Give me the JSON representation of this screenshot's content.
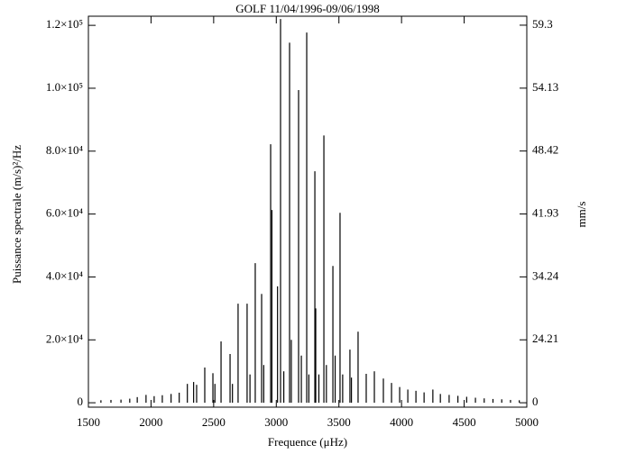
{
  "chart_data": {
    "type": "spectrum",
    "title": "GOLF 11/04/1996-09/06/1998",
    "xlabel": "Frequence (μHz)",
    "ylabel": "Puissance spectrale (m/s)²/Hz",
    "y2label": "mm/s",
    "xlim": [
      1500,
      5000
    ],
    "xticks": [
      1500,
      2000,
      2500,
      3000,
      3500,
      4000,
      4500,
      5000
    ],
    "ylim": [
      -1400,
      122900
    ],
    "yticks": [
      0,
      {
        "value": 20000,
        "label": "2.0×10⁴"
      },
      {
        "value": 40000,
        "label": "4.0×10⁴"
      },
      {
        "value": 60000,
        "label": "6.0×10⁴"
      },
      {
        "value": 80000,
        "label": "8.0×10⁴"
      },
      {
        "value": 100000,
        "label": "1.0×10⁵"
      },
      {
        "value": 120000,
        "label": "1.2×10⁵"
      }
    ],
    "y2scale": "sqrt",
    "y2lim": [
      0,
      60.0
    ],
    "y2ticks": [
      0,
      24.21,
      34.24,
      41.93,
      48.42,
      54.13,
      59.3
    ],
    "color": "#000000",
    "x": [
      1600,
      1680,
      1760,
      1830,
      1890,
      1960,
      2025,
      2090,
      2160,
      2225,
      2290,
      2340,
      2364,
      2429,
      2494,
      2510,
      2559,
      2631,
      2650,
      2695,
      2767,
      2790,
      2832,
      2883,
      2900,
      2955,
      2965,
      3010,
      3034,
      3060,
      3106,
      3120,
      3178,
      3200,
      3243,
      3260,
      3308,
      3315,
      3340,
      3380,
      3400,
      3452,
      3470,
      3509,
      3530,
      3588,
      3600,
      3653,
      3718,
      3783,
      3855,
      3920,
      3985,
      4050,
      4115,
      4180,
      4250,
      4310,
      4380,
      4450,
      4520,
      4590,
      4660,
      4730,
      4800,
      4870,
      4940
    ],
    "values": [
      800,
      900,
      1000,
      1300,
      1800,
      2500,
      2100,
      2400,
      2800,
      3200,
      6000,
      6600,
      5700,
      11200,
      9400,
      6000,
      19500,
      15500,
      6000,
      31500,
      31500,
      9000,
      44400,
      34600,
      12000,
      82200,
      61300,
      37000,
      122000,
      10000,
      114500,
      20000,
      99400,
      15000,
      117700,
      9000,
      73600,
      30000,
      9000,
      85000,
      12000,
      43500,
      15000,
      60400,
      9000,
      16900,
      8000,
      22600,
      9200,
      10000,
      7700,
      6300,
      5000,
      4200,
      3800,
      3300,
      4200,
      2800,
      2500,
      2200,
      1900,
      1600,
      1400,
      1200,
      1100,
      900,
      800
    ]
  }
}
